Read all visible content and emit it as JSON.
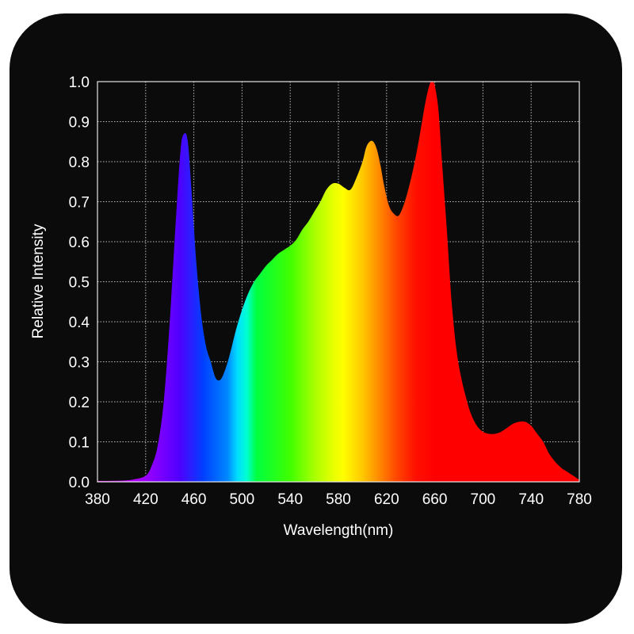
{
  "chart_data": {
    "type": "area",
    "xlabel": "Wavelength(nm)",
    "ylabel": "Relative Intensity",
    "xlim": [
      380,
      780
    ],
    "ylim": [
      0,
      1.0
    ],
    "x_ticks": [
      "380",
      "420",
      "460",
      "500",
      "540",
      "580",
      "620",
      "660",
      "700",
      "740",
      "780"
    ],
    "y_ticks": [
      "0.0",
      "0.1",
      "0.2",
      "0.3",
      "0.4",
      "0.5",
      "0.6",
      "0.7",
      "0.8",
      "0.9",
      "1.0"
    ],
    "grid": true,
    "fill": "visible-spectrum gradient",
    "background": "#0b0b0b",
    "series": [
      {
        "x": [
          380,
          400,
          410,
          420,
          425,
          430,
          435,
          440,
          445,
          449,
          452,
          455,
          458,
          462,
          466,
          470,
          474,
          478,
          482,
          486,
          490,
          495,
          500,
          505,
          510,
          515,
          520,
          525,
          530,
          535,
          540,
          545,
          550,
          555,
          560,
          565,
          570,
          575,
          580,
          585,
          590,
          595,
          600,
          603,
          606,
          609,
          612,
          615,
          618,
          622,
          626,
          630,
          634,
          638,
          642,
          646,
          650,
          653,
          656,
          658,
          660,
          663,
          666,
          670,
          674,
          678,
          682,
          686,
          690,
          695,
          700,
          705,
          710,
          715,
          720,
          725,
          730,
          735,
          740,
          745,
          750,
          755,
          760,
          765,
          770,
          775,
          780
        ],
        "values": [
          0.002,
          0.003,
          0.006,
          0.015,
          0.04,
          0.09,
          0.2,
          0.4,
          0.65,
          0.83,
          0.87,
          0.85,
          0.73,
          0.55,
          0.42,
          0.34,
          0.3,
          0.26,
          0.255,
          0.28,
          0.32,
          0.38,
          0.43,
          0.47,
          0.5,
          0.52,
          0.54,
          0.555,
          0.57,
          0.58,
          0.59,
          0.605,
          0.63,
          0.65,
          0.675,
          0.7,
          0.73,
          0.745,
          0.745,
          0.735,
          0.73,
          0.76,
          0.8,
          0.835,
          0.85,
          0.85,
          0.83,
          0.79,
          0.74,
          0.69,
          0.67,
          0.665,
          0.69,
          0.73,
          0.78,
          0.84,
          0.91,
          0.96,
          0.995,
          1.0,
          0.99,
          0.93,
          0.8,
          0.63,
          0.45,
          0.33,
          0.26,
          0.21,
          0.17,
          0.14,
          0.125,
          0.12,
          0.12,
          0.125,
          0.135,
          0.145,
          0.15,
          0.15,
          0.14,
          0.12,
          0.1,
          0.07,
          0.05,
          0.035,
          0.025,
          0.015,
          0.005
        ]
      }
    ]
  }
}
